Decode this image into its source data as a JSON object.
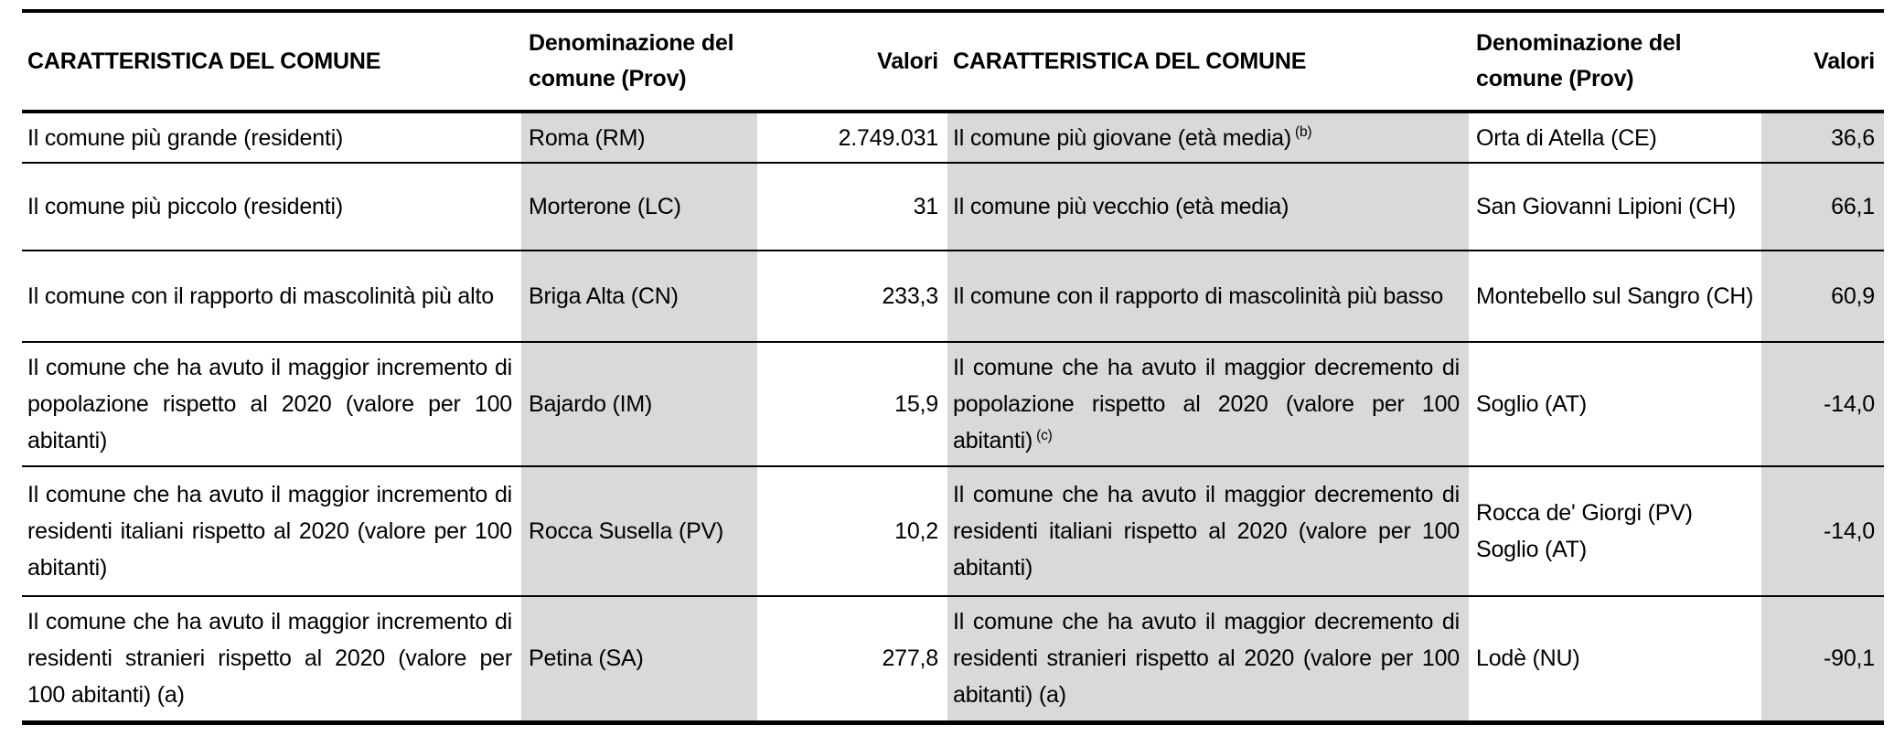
{
  "table": {
    "shading_color": "#d9d9d9",
    "headers": [
      {
        "label": "CARATTERISTICA DEL COMUNE"
      },
      {
        "label": "Denominazione del comune (Prov)"
      },
      {
        "label": "Valori"
      },
      {
        "label": "CARATTERISTICA DEL COMUNE"
      },
      {
        "label": "Denominazione del comune (Prov)"
      },
      {
        "label": "Valori"
      }
    ],
    "rows": [
      {
        "left": {
          "characteristic": "Il comune più grande (residenti)",
          "sup": "",
          "comune": "Roma (RM)",
          "valore": "2.749.031"
        },
        "right": {
          "characteristic": "Il comune più giovane (età media)",
          "sup": "(b)",
          "comune": "Orta di Atella (CE)",
          "valore": "36,6"
        }
      },
      {
        "left": {
          "characteristic": "Il comune più piccolo (residenti)",
          "sup": "",
          "comune": "Morterone (LC)",
          "valore": "31"
        },
        "right": {
          "characteristic": "Il comune più vecchio (età media)",
          "sup": "",
          "comune": "San Giovanni Lipioni (CH)",
          "valore": "66,1"
        }
      },
      {
        "left": {
          "characteristic": "Il comune con il rapporto di mascolinità più alto",
          "sup": "",
          "comune": "Briga Alta (CN)",
          "valore": "233,3"
        },
        "right": {
          "characteristic": "Il comune con il rapporto di mascolinità più basso",
          "sup": "",
          "comune": "Montebello sul Sangro (CH)",
          "valore": "60,9"
        }
      },
      {
        "left": {
          "characteristic": "Il comune che ha avuto il maggior incremento di popolazione rispetto al 2020 (valore per 100 abitanti)",
          "sup": "",
          "comune": "Bajardo (IM)",
          "valore": "15,9"
        },
        "right": {
          "characteristic": "Il comune che ha avuto il maggior decremento di popolazione rispetto al 2020 (valore per 100 abitanti)",
          "sup": "(c)",
          "comune": "Soglio (AT)",
          "valore": "-14,0"
        }
      },
      {
        "left": {
          "characteristic": "Il comune che ha avuto il maggior incremento di residenti italiani rispetto al 2020 (valore per 100 abitanti)",
          "sup": "",
          "comune": "Rocca Susella (PV)",
          "valore": "10,2"
        },
        "right": {
          "characteristic": "Il comune che ha avuto il maggior decremento di residenti italiani rispetto al 2020 (valore per 100 abitanti)",
          "sup": "",
          "comune": "Rocca de' Giorgi (PV)\nSoglio (AT)",
          "valore": "-14,0"
        }
      },
      {
        "left": {
          "characteristic": "Il comune che ha avuto il maggior incremento di residenti stranieri rispetto al 2020 (valore per 100 abitanti) (a)",
          "sup": "",
          "comune": "Petina (SA)",
          "valore": "277,8"
        },
        "right": {
          "characteristic": "Il comune che ha avuto il maggior decremento di residenti stranieri rispetto al 2020 (valore per 100 abitanti) (a)",
          "sup": "",
          "comune": "Lodè (NU)",
          "valore": "-90,1"
        }
      }
    ]
  }
}
